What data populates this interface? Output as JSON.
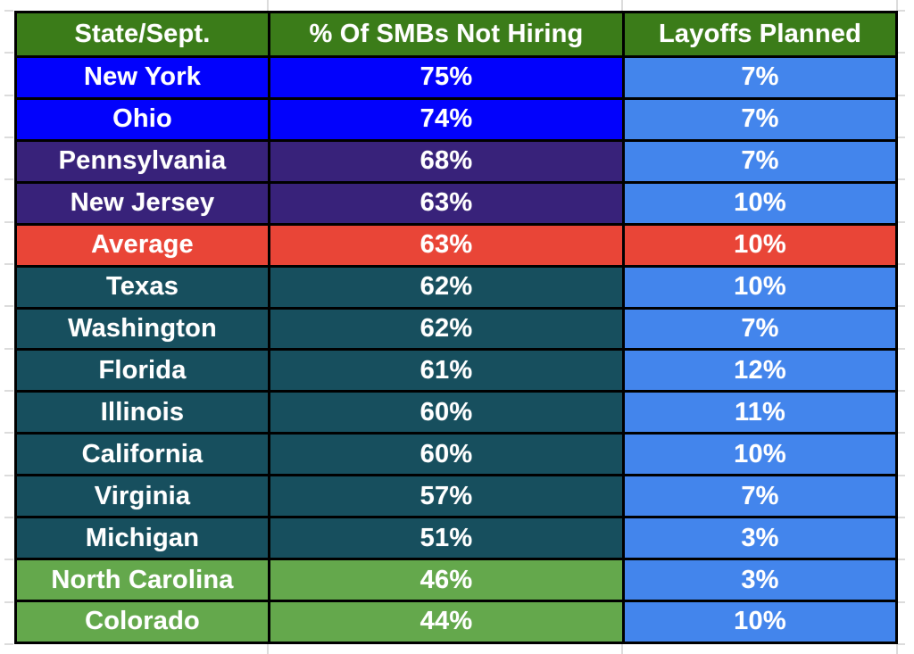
{
  "chart_data": {
    "type": "table",
    "title": "",
    "columns": [
      "State/Sept.",
      "% Of SMBs Not Hiring",
      "Layoffs Planned"
    ],
    "rows": [
      {
        "state": "New York",
        "not_hiring": "75%",
        "layoffs": "7%",
        "theme": "blue"
      },
      {
        "state": "Ohio",
        "not_hiring": "74%",
        "layoffs": "7%",
        "theme": "blue"
      },
      {
        "state": "Pennsylvania",
        "not_hiring": "68%",
        "layoffs": "7%",
        "theme": "indigo"
      },
      {
        "state": "New Jersey",
        "not_hiring": "63%",
        "layoffs": "10%",
        "theme": "indigo"
      },
      {
        "state": "Average",
        "not_hiring": "63%",
        "layoffs": "10%",
        "theme": "red"
      },
      {
        "state": "Texas",
        "not_hiring": "62%",
        "layoffs": "10%",
        "theme": "teal"
      },
      {
        "state": "Washington",
        "not_hiring": "62%",
        "layoffs": "7%",
        "theme": "teal"
      },
      {
        "state": "Florida",
        "not_hiring": "61%",
        "layoffs": "12%",
        "theme": "teal"
      },
      {
        "state": "Illinois",
        "not_hiring": "60%",
        "layoffs": "11%",
        "theme": "teal"
      },
      {
        "state": "California",
        "not_hiring": "60%",
        "layoffs": "10%",
        "theme": "teal"
      },
      {
        "state": "Virginia",
        "not_hiring": "57%",
        "layoffs": "7%",
        "theme": "teal"
      },
      {
        "state": "Michigan",
        "not_hiring": "51%",
        "layoffs": "3%",
        "theme": "teal"
      },
      {
        "state": "North Carolina",
        "not_hiring": "46%",
        "layoffs": "3%",
        "theme": "green"
      },
      {
        "state": "Colorado",
        "not_hiring": "44%",
        "layoffs": "10%",
        "theme": "green"
      }
    ],
    "highlight_row": "Average",
    "legend_position": "none",
    "grid": "off"
  },
  "colors": {
    "header_bg": "#3b7c19",
    "layoffs_column": "#4385ec",
    "border": "#000000",
    "text": "#ffffff",
    "gridline_residue": "#dcdcdc",
    "themes": {
      "blue": "#0202fc",
      "indigo": "#38227a",
      "red": "#e94537",
      "teal": "#174f5e",
      "green": "#64a84c"
    }
  }
}
